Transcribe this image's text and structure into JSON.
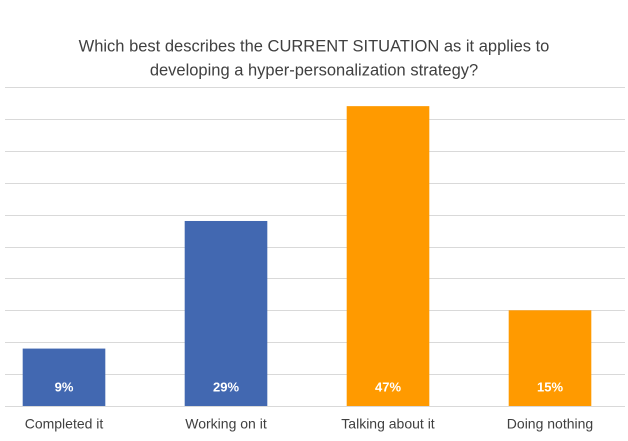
{
  "chart_data": {
    "type": "bar",
    "title": [
      "Which best describes the CURRENT SITUATION as it applies to",
      "developing a hyper-personalization strategy?"
    ],
    "categories": [
      "Completed it",
      "Working on it",
      "Talking about it",
      "Doing nothing"
    ],
    "values": [
      9,
      29,
      47,
      15
    ],
    "value_labels": [
      "9%",
      "29%",
      "47%",
      "15%"
    ],
    "colors": [
      "#4268b1",
      "#4268b1",
      "#ff9a00",
      "#ff9a00"
    ],
    "ylim": [
      0,
      50
    ],
    "yticks": [
      0,
      5,
      10,
      15,
      20,
      25,
      30,
      35,
      40,
      45,
      50
    ],
    "grid": true,
    "show_tick_labels": false
  }
}
